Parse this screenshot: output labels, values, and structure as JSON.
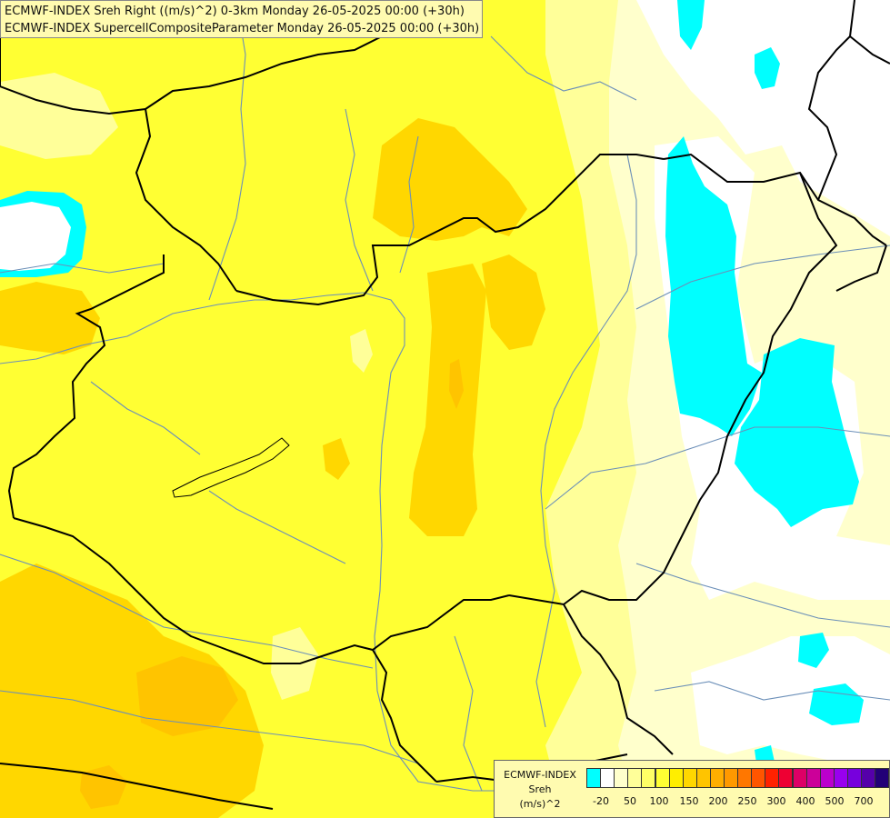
{
  "title": {
    "line1": "ECMWF-INDEX Sreh Right ((m/s)^2) 0-3km Monday 26-05-2025 00:00 (+30h)",
    "line2": "ECMWF-INDEX SupercellCompositeParameter Monday 26-05-2025 00:00 (+30h)"
  },
  "legend": {
    "title1": "ECMWF-INDEX",
    "title2": "Sreh",
    "title3": "(m/s)^2",
    "colors": [
      "#00ffff",
      "#ffffff",
      "#ffffcc",
      "#ffff99",
      "#ffff66",
      "#ffff33",
      "#ffee00",
      "#ffd700",
      "#ffc400",
      "#ffae00",
      "#ff9900",
      "#ff7700",
      "#ff5500",
      "#ff2200",
      "#ee0033",
      "#dd0066",
      "#cc0099",
      "#bb00cc",
      "#9900ee",
      "#7700dd",
      "#5500aa",
      "#220077"
    ],
    "ticks": [
      "-20",
      "50",
      "100",
      "150",
      "200",
      "250",
      "300",
      "400",
      "500",
      "700"
    ]
  },
  "map": {
    "palette": {
      "background": "#ffff33",
      "pale_yellow": "#ffff99",
      "light_yellow": "#ffffcc",
      "orange_yellow": "#ffd700",
      "orange": "#ffc400",
      "white": "#ffffff",
      "cyan": "#00ffff",
      "border": "#000000",
      "river": "#6b8fb8"
    }
  }
}
